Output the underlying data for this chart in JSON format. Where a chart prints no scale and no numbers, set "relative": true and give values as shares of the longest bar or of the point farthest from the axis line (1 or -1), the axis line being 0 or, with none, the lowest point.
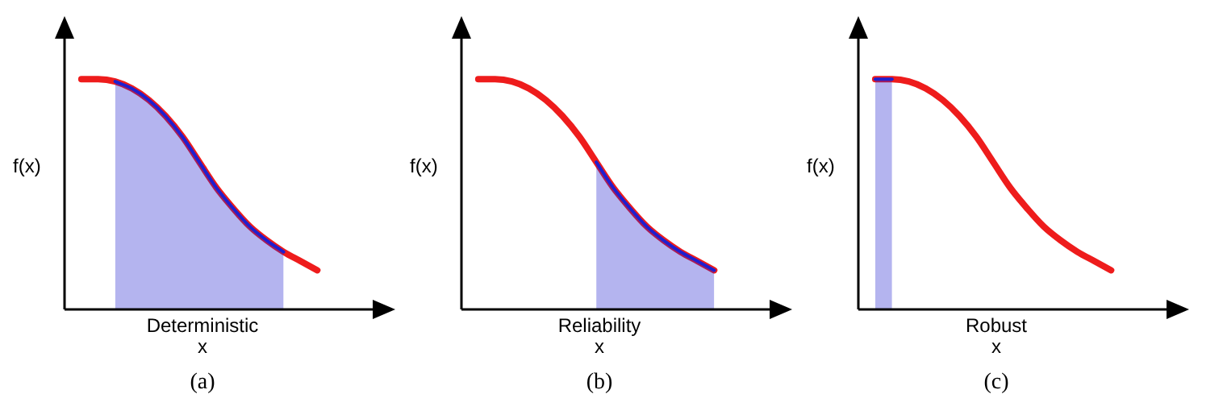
{
  "chart_data": [
    {
      "type": "line",
      "relative": true,
      "ylabel": "f(x)",
      "xlabel": "Deterministic\nx",
      "annotations": [
        "(a)"
      ],
      "categories": [
        null,
        null,
        null,
        null,
        null,
        null,
        null,
        null,
        null,
        null,
        null,
        null,
        null,
        null,
        null,
        null,
        null,
        null,
        null
      ],
      "series": [
        {
          "type": "line",
          "color": "#ee1c1c",
          "values": [
            null,
            1,
            1,
            0.99,
            0.96,
            0.91,
            0.84,
            0.75,
            0.64,
            0.53,
            0.44,
            0.36,
            0.3,
            0.25,
            0.21,
            0.17,
            null,
            null,
            null
          ]
        },
        {
          "type": "area",
          "color": "#1f1fcf",
          "values": [
            null,
            null,
            null,
            0.99,
            0.96,
            0.91,
            0.84,
            0.75,
            0.64,
            0.53,
            0.44,
            0.36,
            0.3,
            0.25,
            null,
            null,
            null,
            null,
            null
          ]
        }
      ]
    },
    {
      "type": "line",
      "relative": true,
      "ylabel": "f(x)",
      "xlabel": "Reliability\nx",
      "annotations": [
        "(b)"
      ],
      "categories": [
        null,
        null,
        null,
        null,
        null,
        null,
        null,
        null,
        null,
        null,
        null,
        null,
        null,
        null,
        null,
        null,
        null,
        null,
        null
      ],
      "series": [
        {
          "type": "line",
          "color": "#ee1c1c",
          "values": [
            null,
            1,
            1,
            0.99,
            0.96,
            0.91,
            0.84,
            0.75,
            0.64,
            0.53,
            0.44,
            0.36,
            0.3,
            0.25,
            0.21,
            0.17,
            null,
            null,
            null
          ]
        },
        {
          "type": "area",
          "color": "#1f1fcf",
          "values": [
            null,
            null,
            null,
            null,
            null,
            null,
            null,
            null,
            0.64,
            0.53,
            0.44,
            0.36,
            0.3,
            0.25,
            0.21,
            0.17,
            null,
            null,
            null
          ]
        }
      ]
    },
    {
      "type": "line",
      "relative": true,
      "ylabel": "f(x)",
      "xlabel": "Robust\nx",
      "annotations": [
        "(c)"
      ],
      "categories": [
        null,
        null,
        null,
        null,
        null,
        null,
        null,
        null,
        null,
        null,
        null,
        null,
        null,
        null,
        null,
        null,
        null,
        null,
        null
      ],
      "series": [
        {
          "type": "line",
          "color": "#ee1c1c",
          "values": [
            null,
            1,
            1,
            0.99,
            0.96,
            0.91,
            0.84,
            0.75,
            0.64,
            0.53,
            0.44,
            0.36,
            0.3,
            0.25,
            0.21,
            0.17,
            null,
            null,
            null
          ]
        },
        {
          "type": "area",
          "color": "#1f1fcf",
          "values": [
            null,
            1,
            1,
            null,
            null,
            null,
            null,
            null,
            null,
            null,
            null,
            null,
            null,
            null,
            null,
            null,
            null,
            null,
            null
          ]
        }
      ]
    }
  ]
}
